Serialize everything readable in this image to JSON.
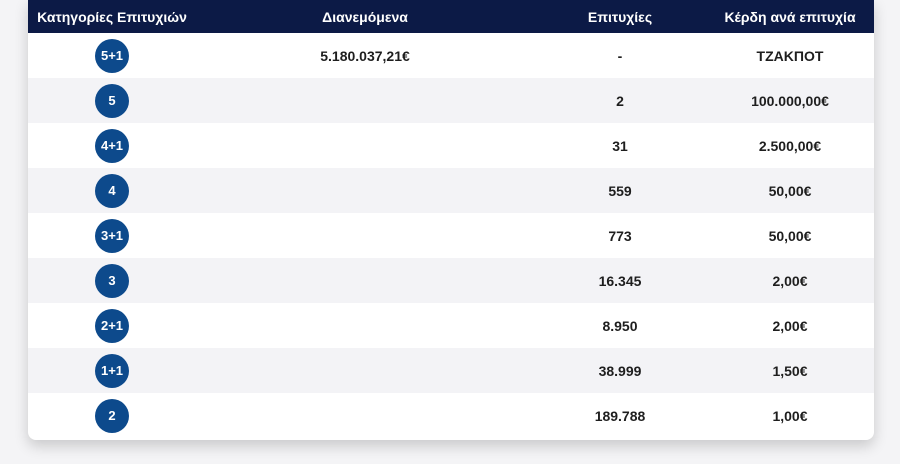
{
  "table": {
    "headers": {
      "categories": "Κατηγορίες Επιτυχιών",
      "distributed": "Διανεμόμενα",
      "winners": "Επιτυχίες",
      "prize": "Κέρδη ανά επιτυχία"
    },
    "rows": [
      {
        "category": "5+1",
        "distributed": "5.180.037,21€",
        "winners": "-",
        "prize": "ΤΖΑΚΠΟΤ"
      },
      {
        "category": "5",
        "distributed": "",
        "winners": "2",
        "prize": "100.000,00€"
      },
      {
        "category": "4+1",
        "distributed": "",
        "winners": "31",
        "prize": "2.500,00€"
      },
      {
        "category": "4",
        "distributed": "",
        "winners": "559",
        "prize": "50,00€"
      },
      {
        "category": "3+1",
        "distributed": "",
        "winners": "773",
        "prize": "50,00€"
      },
      {
        "category": "3",
        "distributed": "",
        "winners": "16.345",
        "prize": "2,00€"
      },
      {
        "category": "2+1",
        "distributed": "",
        "winners": "8.950",
        "prize": "2,00€"
      },
      {
        "category": "1+1",
        "distributed": "",
        "winners": "38.999",
        "prize": "1,50€"
      },
      {
        "category": "2",
        "distributed": "",
        "winners": "189.788",
        "prize": "1,00€"
      }
    ]
  },
  "colors": {
    "header_bg": "#0c1a46",
    "badge_bg": "#0d4a8c",
    "alt_row_bg": "#f3f3f6"
  }
}
